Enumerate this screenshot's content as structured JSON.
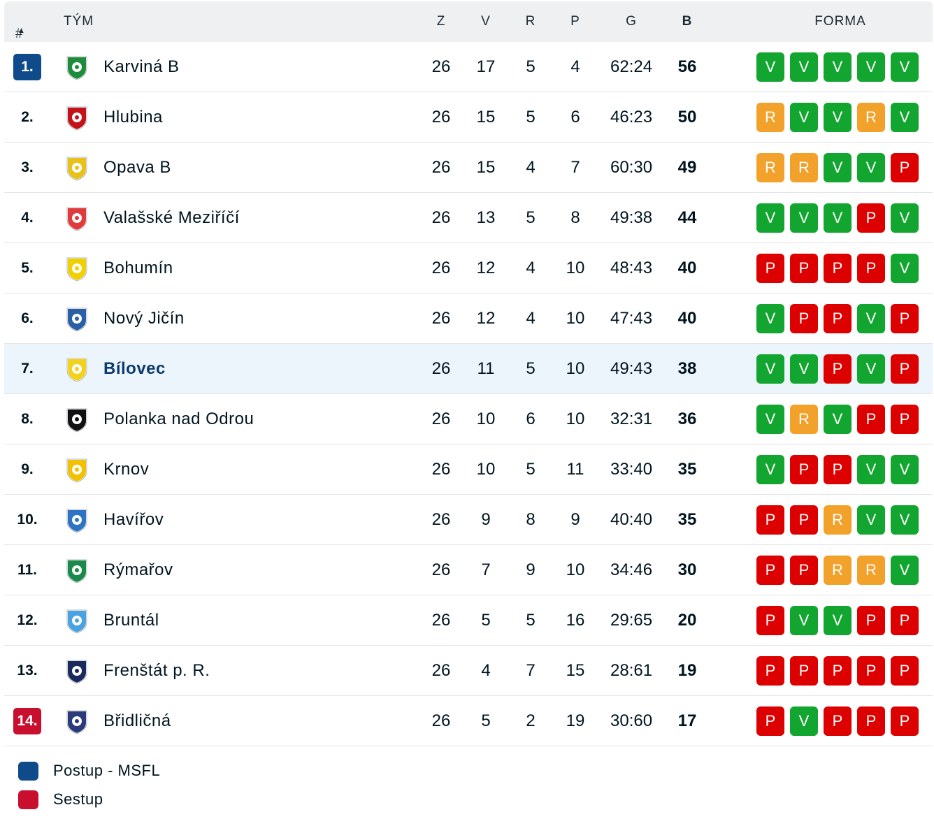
{
  "header": {
    "rank": "#",
    "team": "TÝM",
    "played": "Z",
    "wins": "V",
    "draws": "R",
    "losses": "P",
    "goals": "G",
    "points": "B",
    "form": "FORMA"
  },
  "rows": [
    {
      "rank": "1.",
      "team": "Karviná B",
      "z": "26",
      "v": "17",
      "r": "5",
      "p": "4",
      "g": "62:24",
      "b": "56",
      "form": [
        "V",
        "V",
        "V",
        "V",
        "V"
      ],
      "status": "promo",
      "logo_color": "#1e8c3a",
      "logo_icon": "karvina-crest-icon"
    },
    {
      "rank": "2.",
      "team": "Hlubina",
      "z": "26",
      "v": "15",
      "r": "5",
      "p": "6",
      "g": "46:23",
      "b": "50",
      "form": [
        "R",
        "V",
        "V",
        "R",
        "V"
      ],
      "logo_color": "#c4121a",
      "logo_icon": "hlubina-crest-icon"
    },
    {
      "rank": "3.",
      "team": "Opava B",
      "z": "26",
      "v": "15",
      "r": "4",
      "p": "7",
      "g": "60:30",
      "b": "49",
      "form": [
        "R",
        "R",
        "V",
        "V",
        "P"
      ],
      "logo_color": "#e8c21a",
      "logo_icon": "opava-crest-icon"
    },
    {
      "rank": "4.",
      "team": "Valašské Meziříčí",
      "z": "26",
      "v": "13",
      "r": "5",
      "p": "8",
      "g": "49:38",
      "b": "44",
      "form": [
        "V",
        "V",
        "V",
        "P",
        "V"
      ],
      "logo_color": "#e03a3a",
      "logo_icon": "valasske-mezirici-crest-icon"
    },
    {
      "rank": "5.",
      "team": "Bohumín",
      "z": "26",
      "v": "12",
      "r": "4",
      "p": "10",
      "g": "48:43",
      "b": "40",
      "form": [
        "P",
        "P",
        "P",
        "P",
        "V"
      ],
      "logo_color": "#f0d000",
      "logo_icon": "bohumin-crest-icon"
    },
    {
      "rank": "6.",
      "team": "Nový Jičín",
      "z": "26",
      "v": "12",
      "r": "4",
      "p": "10",
      "g": "47:43",
      "b": "40",
      "form": [
        "V",
        "P",
        "P",
        "V",
        "P"
      ],
      "logo_color": "#2a5fa8",
      "logo_icon": "novy-jicin-crest-icon"
    },
    {
      "rank": "7.",
      "team": "Bílovec",
      "z": "26",
      "v": "11",
      "r": "5",
      "p": "10",
      "g": "49:43",
      "b": "38",
      "form": [
        "V",
        "V",
        "P",
        "V",
        "P"
      ],
      "highlight": true,
      "logo_color": "#f2d21a",
      "logo_icon": "bilovec-crest-icon"
    },
    {
      "rank": "8.",
      "team": "Polanka nad Odrou",
      "z": "26",
      "v": "10",
      "r": "6",
      "p": "10",
      "g": "32:31",
      "b": "36",
      "form": [
        "V",
        "R",
        "V",
        "P",
        "P"
      ],
      "logo_color": "#111111",
      "logo_icon": "polanka-crest-icon"
    },
    {
      "rank": "9.",
      "team": "Krnov",
      "z": "26",
      "v": "10",
      "r": "5",
      "p": "11",
      "g": "33:40",
      "b": "35",
      "form": [
        "V",
        "P",
        "P",
        "V",
        "V"
      ],
      "logo_color": "#f2c200",
      "logo_icon": "krnov-crest-icon"
    },
    {
      "rank": "10.",
      "team": "Havířov",
      "z": "26",
      "v": "9",
      "r": "8",
      "p": "9",
      "g": "40:40",
      "b": "35",
      "form": [
        "P",
        "P",
        "R",
        "V",
        "V"
      ],
      "logo_color": "#2f73c4",
      "logo_icon": "havirov-crest-icon"
    },
    {
      "rank": "11.",
      "team": "Rýmařov",
      "z": "26",
      "v": "7",
      "r": "9",
      "p": "10",
      "g": "34:46",
      "b": "30",
      "form": [
        "P",
        "P",
        "R",
        "R",
        "V"
      ],
      "logo_color": "#1a8a4a",
      "logo_icon": "rymarov-crest-icon"
    },
    {
      "rank": "12.",
      "team": "Bruntál",
      "z": "26",
      "v": "5",
      "r": "5",
      "p": "16",
      "g": "29:65",
      "b": "20",
      "form": [
        "P",
        "V",
        "V",
        "P",
        "P"
      ],
      "logo_color": "#4aa3e0",
      "logo_icon": "bruntal-crest-icon"
    },
    {
      "rank": "13.",
      "team": "Frenštát p. R.",
      "z": "26",
      "v": "4",
      "r": "7",
      "p": "15",
      "g": "28:61",
      "b": "19",
      "form": [
        "P",
        "P",
        "P",
        "P",
        "P"
      ],
      "logo_color": "#1b2a5c",
      "logo_icon": "frenstat-crest-icon"
    },
    {
      "rank": "14.",
      "team": "Břidličná",
      "z": "26",
      "v": "5",
      "r": "2",
      "p": "19",
      "g": "30:60",
      "b": "17",
      "form": [
        "P",
        "V",
        "P",
        "P",
        "P"
      ],
      "status": "releg",
      "logo_color": "#2a3a7a",
      "logo_icon": "bridlicna-crest-icon"
    }
  ],
  "legend": [
    {
      "label": "Postup - MSFL",
      "color": "#0f4a8b"
    },
    {
      "label": "Sestup",
      "color": "#c8102e"
    }
  ]
}
